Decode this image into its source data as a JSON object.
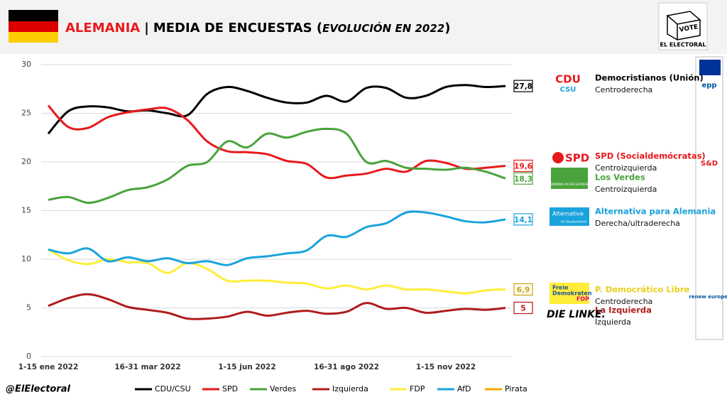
{
  "chart_data": {
    "type": "line",
    "title": {
      "country": "ALEMANIA",
      "sep": "|",
      "main": "MEDIA DE ENCUESTAS (",
      "emph": "EVOLUCIÓN EN 2022",
      "close": ")"
    },
    "brand": {
      "vote": "VOTE",
      "name": "EL ELECTORAL",
      "handle": "@ElElectoral"
    },
    "categories": [
      "1-15 ene 2022",
      null,
      null,
      null,
      null,
      "16-31 mar 2022",
      null,
      null,
      null,
      null,
      "1-15 jun 2022",
      null,
      null,
      null,
      null,
      "16-31 ago 2022",
      null,
      null,
      null,
      null,
      "1-15 nov 2022",
      null,
      null,
      null
    ],
    "ylim": [
      0,
      30
    ],
    "yticks": [
      0,
      5,
      10,
      15,
      20,
      25,
      30
    ],
    "grid": true,
    "legend": "bottom",
    "series": [
      {
        "name": "CDU/CSU",
        "color": "#000000",
        "values": [
          22.9,
          25.2,
          25.7,
          25.6,
          25.2,
          25.3,
          25.0,
          24.8,
          27.0,
          27.7,
          27.3,
          26.6,
          26.1,
          26.1,
          26.8,
          26.2,
          27.6,
          27.6,
          26.6,
          26.8,
          27.7,
          27.9,
          27.7,
          27.8
        ],
        "value_labels": [
          null,
          null,
          null,
          null,
          null,
          null,
          null,
          null,
          null,
          null,
          null,
          null,
          null,
          null,
          null,
          null,
          null,
          null,
          null,
          null,
          null,
          null,
          null,
          "27,8"
        ]
      },
      {
        "name": "SPD",
        "color": "#e8191c",
        "values": [
          25.8,
          23.6,
          23.5,
          24.6,
          25.1,
          25.4,
          25.5,
          24.3,
          22.1,
          21.1,
          21.0,
          20.8,
          20.1,
          19.8,
          18.4,
          18.6,
          18.8,
          19.3,
          19.0,
          20.1,
          19.9,
          19.3,
          19.4,
          19.6
        ],
        "value_labels": [
          null,
          null,
          null,
          null,
          null,
          null,
          null,
          null,
          null,
          null,
          null,
          null,
          null,
          null,
          null,
          null,
          null,
          null,
          null,
          null,
          null,
          null,
          null,
          "19,6"
        ]
      },
      {
        "name": "Verdes",
        "color": "#4aa23c",
        "values": [
          16.1,
          16.4,
          15.8,
          16.3,
          17.1,
          17.4,
          18.2,
          19.6,
          20.0,
          22.1,
          21.5,
          22.9,
          22.5,
          23.1,
          23.4,
          22.9,
          20.0,
          20.1,
          19.4,
          19.3,
          19.2,
          19.4,
          19.0,
          18.3
        ],
        "value_labels": [
          null,
          null,
          null,
          null,
          null,
          null,
          null,
          null,
          null,
          null,
          null,
          null,
          null,
          null,
          null,
          null,
          null,
          null,
          null,
          null,
          null,
          null,
          null,
          "18,3"
        ]
      },
      {
        "name": "Izquierda",
        "color": "#b01c1c",
        "values": [
          5.2,
          6.0,
          6.4,
          5.9,
          5.1,
          4.8,
          4.5,
          3.9,
          3.9,
          4.1,
          4.6,
          4.2,
          4.5,
          4.7,
          4.4,
          4.6,
          5.5,
          4.9,
          5.0,
          4.5,
          4.7,
          4.9,
          4.8,
          5.0
        ],
        "value_labels": [
          null,
          null,
          null,
          null,
          null,
          null,
          null,
          null,
          null,
          null,
          null,
          null,
          null,
          null,
          null,
          null,
          null,
          null,
          null,
          null,
          null,
          null,
          null,
          "5"
        ]
      },
      {
        "name": "FDP",
        "color": "#ffed3a",
        "values": [
          11.0,
          9.9,
          9.5,
          10.0,
          9.7,
          9.6,
          8.6,
          9.6,
          9.0,
          7.8,
          7.8,
          7.8,
          7.6,
          7.5,
          7.0,
          7.3,
          6.9,
          7.3,
          6.9,
          6.9,
          6.7,
          6.5,
          6.8,
          6.9
        ],
        "value_labels": [
          null,
          null,
          null,
          null,
          null,
          null,
          null,
          null,
          null,
          null,
          null,
          null,
          null,
          null,
          null,
          null,
          null,
          null,
          null,
          null,
          null,
          null,
          null,
          "6,9"
        ]
      },
      {
        "name": "AfD",
        "color": "#1aa3dc",
        "values": [
          11.0,
          10.6,
          11.1,
          9.8,
          10.2,
          9.8,
          10.1,
          9.6,
          9.8,
          9.4,
          10.1,
          10.3,
          10.6,
          10.9,
          12.4,
          12.3,
          13.3,
          13.7,
          14.8,
          14.8,
          14.4,
          13.9,
          13.8,
          14.1
        ],
        "value_labels": [
          null,
          null,
          null,
          null,
          null,
          null,
          null,
          null,
          null,
          null,
          null,
          null,
          null,
          null,
          null,
          null,
          null,
          null,
          null,
          null,
          null,
          null,
          null,
          "14,1"
        ]
      },
      {
        "name": "Pirata",
        "color": "#f5a800",
        "values": [
          null,
          null,
          null,
          null,
          null,
          null,
          null,
          null,
          null,
          null,
          null,
          null,
          null,
          null,
          null,
          null,
          null,
          null,
          null,
          null,
          null,
          null,
          null,
          null
        ]
      }
    ],
    "parties": [
      {
        "logo": [
          "CDU",
          "CSU"
        ],
        "name": "Democristianos (Unión)",
        "ideology": "Centroderecha",
        "color": "#000000",
        "group": "epp"
      },
      {
        "logo": [
          "SPD"
        ],
        "name": "SPD (Socialdemócratas)",
        "ideology": "Centroizquierda",
        "color": "#e8191c",
        "group": "S&D"
      },
      {
        "logo": [
          "BÜNDNIS 90 DIE GRÜNEN"
        ],
        "name": "Los Verdes",
        "ideology": "Centroizquierda",
        "color": "#4aa23c"
      },
      {
        "logo": [
          "Alternative",
          "für Deutschland"
        ],
        "name": "Alternativa para Alemania",
        "ideology": "Derecha/ultraderecha",
        "color": "#1aa3dc"
      },
      {
        "logo": [
          "Freie",
          "Demokraten",
          "FDP"
        ],
        "name": "P. Democrático Libre",
        "ideology": "Centroderecha",
        "color": "#e8d020",
        "group": "renew europe."
      },
      {
        "logo": [
          "DIE LINKE."
        ],
        "name": "La Izquierda",
        "ideology": "Izquierda",
        "color": "#b01c1c"
      }
    ]
  }
}
